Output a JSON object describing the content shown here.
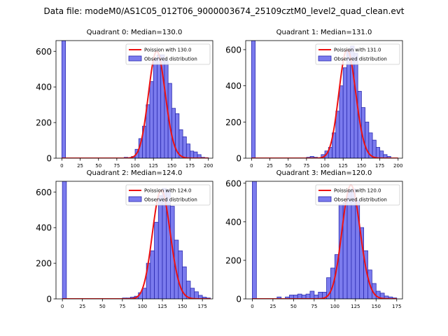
{
  "figure": {
    "suptitle": "Data file: modeM0/AS1C05_012T06_9000003674_25109cztM0_level2_quad_clean.evt"
  },
  "colors": {
    "bar_fill": "#7b7bee",
    "bar_edge": "#2b2bb0",
    "curve": "#ee1111",
    "axis": "#000000"
  },
  "chart_data": [
    {
      "type": "bar",
      "title": "Quadrant 0: Median=130.0",
      "xlim": [
        -8,
        206
      ],
      "ylim": [
        0,
        660
      ],
      "xticks": [
        0,
        25,
        50,
        75,
        100,
        125,
        150,
        175,
        200
      ],
      "yticks": [
        0,
        200,
        400,
        600
      ],
      "bin_width": 5,
      "series": [
        {
          "name": "Observed distribution",
          "type": "histogram",
          "bins": [
            0,
            80,
            85,
            90,
            95,
            100,
            105,
            110,
            115,
            120,
            125,
            130,
            135,
            140,
            145,
            150,
            155,
            160,
            165,
            170,
            175,
            180,
            185,
            190,
            195
          ],
          "values": [
            660,
            0,
            5,
            3,
            10,
            50,
            110,
            180,
            300,
            430,
            560,
            580,
            580,
            550,
            420,
            280,
            250,
            160,
            120,
            80,
            40,
            35,
            20,
            5,
            3
          ]
        },
        {
          "name": "Poission with 130.0",
          "type": "poisson",
          "mean": 130.0,
          "peak": 600,
          "x_range": [
            0,
            200
          ]
        }
      ]
    },
    {
      "type": "bar",
      "title": "Quadrant 1: Median=131.0",
      "xlim": [
        -8,
        206
      ],
      "ylim": [
        0,
        650
      ],
      "xticks": [
        0,
        25,
        50,
        75,
        100,
        125,
        150,
        175,
        200
      ],
      "yticks": [
        0,
        200,
        400,
        600
      ],
      "bin_width": 5,
      "series": [
        {
          "name": "Observed distribution",
          "type": "histogram",
          "bins": [
            0,
            75,
            80,
            85,
            95,
            100,
            105,
            110,
            115,
            120,
            125,
            130,
            135,
            140,
            145,
            150,
            155,
            160,
            165,
            170,
            175,
            180,
            185
          ],
          "values": [
            650,
            5,
            10,
            5,
            20,
            40,
            60,
            140,
            260,
            400,
            500,
            600,
            620,
            580,
            370,
            280,
            200,
            140,
            100,
            60,
            40,
            20,
            10
          ]
        },
        {
          "name": "Poission with 131.0",
          "type": "poisson",
          "mean": 131.0,
          "peak": 600,
          "x_range": [
            0,
            200
          ]
        }
      ]
    },
    {
      "type": "bar",
      "title": "Quadrant 2: Median=124.0",
      "xlim": [
        -8,
        188
      ],
      "ylim": [
        0,
        660
      ],
      "xticks": [
        0,
        25,
        50,
        75,
        100,
        125,
        150,
        175
      ],
      "yticks": [
        0,
        200,
        400,
        600
      ],
      "bin_width": 5,
      "series": [
        {
          "name": "Observed distribution",
          "type": "histogram",
          "bins": [
            0,
            75,
            80,
            85,
            90,
            95,
            100,
            105,
            110,
            115,
            120,
            125,
            130,
            135,
            140,
            145,
            150,
            155,
            160,
            165,
            170,
            175,
            180
          ],
          "values": [
            660,
            5,
            5,
            10,
            15,
            35,
            60,
            200,
            270,
            430,
            580,
            620,
            610,
            520,
            330,
            270,
            180,
            100,
            60,
            40,
            20,
            10,
            5
          ]
        },
        {
          "name": "Poission with 124.0",
          "type": "poisson",
          "mean": 124.0,
          "peak": 610,
          "x_range": [
            0,
            185
          ]
        }
      ]
    },
    {
      "type": "bar",
      "title": "Quadrant 3: Median=120.0",
      "xlim": [
        -8,
        182
      ],
      "ylim": [
        0,
        610
      ],
      "xticks": [
        0,
        25,
        50,
        75,
        100,
        125,
        150,
        175
      ],
      "yticks": [
        0,
        200,
        400,
        600
      ],
      "bin_width": 5,
      "series": [
        {
          "name": "Observed distribution",
          "type": "histogram",
          "bins": [
            0,
            30,
            40,
            45,
            50,
            55,
            60,
            65,
            70,
            75,
            80,
            85,
            90,
            95,
            100,
            105,
            110,
            115,
            120,
            125,
            130,
            135,
            140,
            145,
            150,
            155,
            160,
            165,
            170
          ],
          "values": [
            610,
            10,
            10,
            20,
            20,
            25,
            20,
            25,
            40,
            20,
            35,
            35,
            110,
            160,
            230,
            490,
            500,
            560,
            570,
            510,
            370,
            250,
            150,
            80,
            40,
            30,
            15,
            10,
            5
          ]
        },
        {
          "name": "Poission with 120.0",
          "type": "poisson",
          "mean": 120.0,
          "peak": 590,
          "x_range": [
            0,
            175
          ]
        }
      ]
    }
  ]
}
